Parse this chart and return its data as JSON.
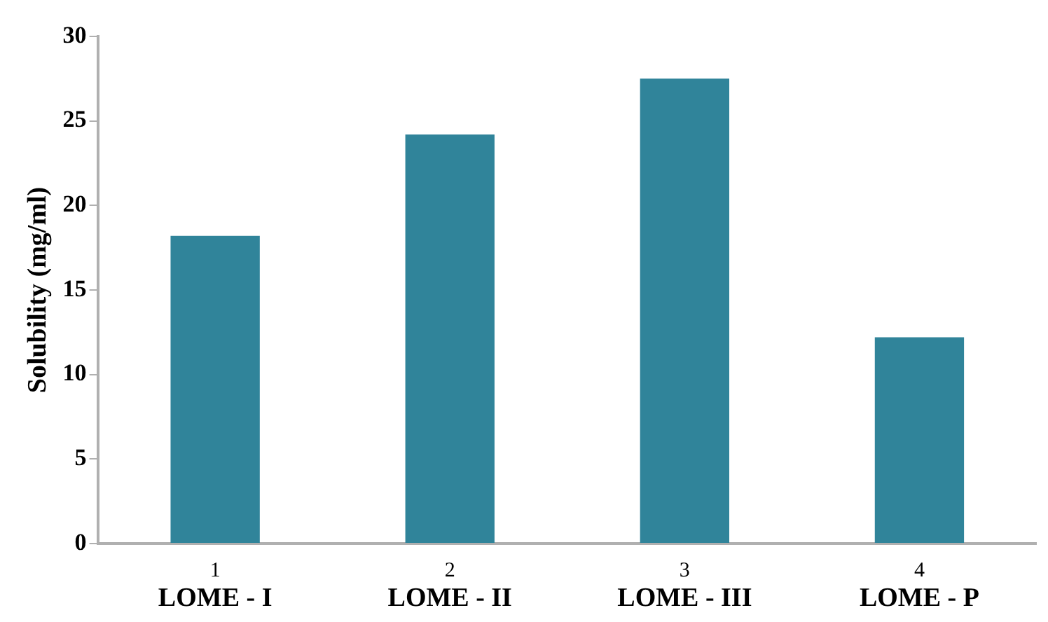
{
  "chart_data": {
    "type": "bar",
    "ylabel": "Solubility (mg/ml)",
    "categories": [
      "1\nLOME - I",
      "2\nLOME - II",
      "3\nLOME - III",
      "4\nLOME - P"
    ],
    "values": [
      18.2,
      24.2,
      27.5,
      12.2
    ],
    "color": "#30849a",
    "ylim": [
      0,
      30
    ],
    "yticks": [
      0,
      5,
      10,
      15,
      20,
      25,
      30
    ],
    "grid": false,
    "legend": false
  }
}
